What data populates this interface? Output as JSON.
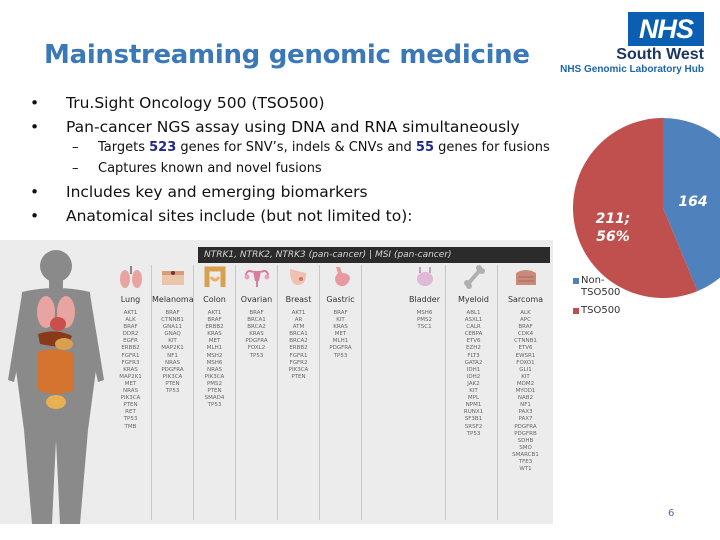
{
  "header": {
    "title": "Mainstreaming genomic medicine",
    "logo_text": "NHS",
    "org_name": "South West",
    "org_sub": "NHS Genomic Laboratory Hub"
  },
  "bullets_top": [
    "Tru.Sight Oncology 500 (TSO500)",
    "Pan-cancer NGS assay using DNA and RNA simultaneously"
  ],
  "sub_bullets": {
    "targets_prefix": "Targets ",
    "snv_count": "523",
    "targets_mid": " genes for SNV’s, indels & CNVs and ",
    "fusion_count": "55",
    "targets_suffix": " genes for fusions",
    "captures": "Captures known and novel fusions"
  },
  "bullets_bottom": [
    "Includes key and emerging biomarkers",
    "Anatomical sites include (but not limited to):"
  ],
  "figure": {
    "banner": "NTRK1, NTRK2, NTRK3 (pan-cancer)  |  MSI (pan-cancer)",
    "columns": [
      {
        "name": "Lung",
        "genes": "AKT1\nALK\nBRAF\nDDR2\nEGFR\nERBB2\nFGFR1\nFGFR3\nKRAS\nMAP2K1\nMET\nNRAS\nPIK3CA\nPTEN\nRET\nTP53\nTMB"
      },
      {
        "name": "Melanoma",
        "genes": "BRAF\nCTNNB1\nGNA11\nGNAQ\nKIT\nMAP2K1\nNF1\nNRAS\nPDGFRA\nPIK3CA\nPTEN\nTP53"
      },
      {
        "name": "Colon",
        "genes": "AKT1\nBRAF\nERBB2\nKRAS\nMET\nMLH1\nMSH2\nMSH6\nNRAS\nPIK3CA\nPMS2\nPTEN\nSMAD4\nTP53"
      },
      {
        "name": "Ovarian",
        "genes": "BRAF\nBRCA1\nBRCA2\nKRAS\nPDGFRA\nFOXL2\nTP53"
      },
      {
        "name": "Breast",
        "genes": "AKT1\nAR\nATM\nBRCA1\nBRCA2\nERBB2\nFGFR1\nFGFR2\nPIK3CA\nPTEN"
      },
      {
        "name": "Gastric",
        "genes": "BRAF\nKIT\nKRAS\nMET\nMLH1\nPDGFRA\nTP53"
      },
      {
        "name": "Bladder",
        "genes": "MSH6\nPMS2\nTSC1"
      },
      {
        "name": "Myeloid",
        "genes": "ABL1\nASXL1\nCALR\nCEBPA\nETV6\nEZH2\nFLT3\nGATA2\nIDH1\nIDH2\nJAK2\nKIT\nMPL\nNPM1\nRUNX1\nSF3B1\nSRSF2\nTP53"
      },
      {
        "name": "Sarcoma",
        "genes": "ALK\nAPC\nBRAF\nCDK4\nCTNNB1\nETV6\nEWSR1\nFOXO1\nGLI1\nKIT\nMDM2\nMYOD1\nNAB2\nNF1\nPAX3\nPAX7\nPDGFRA\nPDGFRB\nSDHB\nSMO\nSMARCB1\nTFE3\nWT1"
      }
    ]
  },
  "chart_data": {
    "type": "pie",
    "title": "",
    "slices": [
      {
        "label": "Non-TSO500",
        "value": 164,
        "display": "164",
        "color": "#4f81bd"
      },
      {
        "label": "TSO500",
        "value": 211,
        "display": "211; 56%",
        "color": "#c0504d"
      }
    ],
    "legend": [
      "Non-TSO500",
      "TSO500"
    ],
    "legend_position": "right-bottom"
  },
  "page_number": "6"
}
